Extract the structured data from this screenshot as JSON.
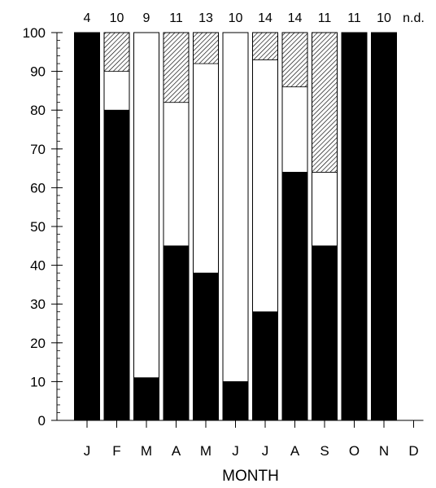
{
  "chart_data": {
    "type": "bar",
    "stacked": true,
    "title": "",
    "xlabel": "MONTH",
    "ylabel": "",
    "ylim": [
      0,
      100
    ],
    "y_major_ticks": [
      0,
      10,
      20,
      30,
      40,
      50,
      60,
      70,
      80,
      90,
      100
    ],
    "y_minor_tick_step": 2,
    "grid": false,
    "categories": [
      "J",
      "F",
      "M",
      "A",
      "M",
      "J",
      "J",
      "A",
      "S",
      "O",
      "N",
      "D"
    ],
    "top_labels": [
      "4",
      "10",
      "9",
      "11",
      "13",
      "10",
      "14",
      "14",
      "11",
      "11",
      "10",
      "n.d."
    ],
    "series": [
      {
        "fill": "solid black",
        "color": "#000000",
        "values": [
          100,
          80,
          11,
          45,
          38,
          10,
          28,
          64,
          45,
          100,
          100,
          null
        ]
      },
      {
        "fill": "white",
        "color": "#ffffff",
        "values": [
          0,
          10,
          89,
          37,
          54,
          90,
          65,
          22,
          19,
          0,
          0,
          null
        ]
      },
      {
        "fill": "diagonal hatch",
        "color": "#000000",
        "values": [
          0,
          10,
          0,
          18,
          8,
          0,
          7,
          14,
          36,
          0,
          0,
          null
        ]
      }
    ]
  }
}
